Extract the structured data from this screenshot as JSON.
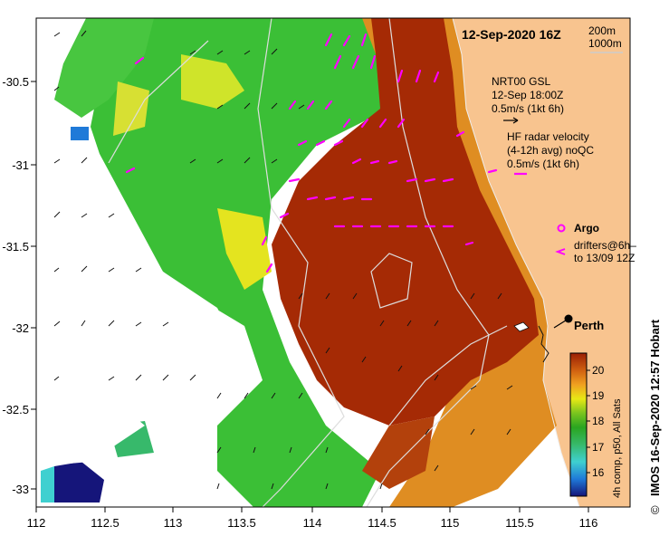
{
  "title": "12-Sep-2020 16Z",
  "isobaths": [
    "200m",
    "1000m"
  ],
  "gsl_legend": {
    "line1": "NRT00 GSL",
    "line2": "12-Sep 18:00Z",
    "line3": "0.5m/s (1kt 6h)"
  },
  "hf_legend": {
    "line1": "HF radar velocity",
    "line2": "(4-12h avg) noQC",
    "line3": "0.5m/s (1kt 6h)"
  },
  "argo_label": "Argo",
  "drifter_legend": {
    "line1": "drifters@6h–",
    "line2": "to 13/09 12Z"
  },
  "place_label": "Perth",
  "colorbar": {
    "ticks": [
      "20",
      "19",
      "18",
      "17",
      "16"
    ],
    "caption": "4h comp, p50, All Sats",
    "min": 15.5,
    "max": 20.5,
    "colors": [
      "#15157a",
      "#1f7ad8",
      "#3fd0d0",
      "#37b96b",
      "#2aa520",
      "#7ac41f",
      "#e8e815",
      "#f0a020",
      "#d06010",
      "#9a1f05"
    ]
  },
  "credit": "IMOS 16-Sep-2020 12:57 Hobart",
  "copyright": "©",
  "axes": {
    "x_labels": [
      "112",
      "112.5",
      "113",
      "113.5",
      "114",
      "114.5",
      "115",
      "115.5",
      "116"
    ],
    "y_labels": [
      "-30.5",
      "-31",
      "-31.5",
      "-32",
      "-32.5",
      "-33"
    ]
  },
  "colors": {
    "land": "#f8c48f",
    "warm": "#a52a05",
    "cool": "#3bbf36",
    "drifter": "#ff00ff"
  }
}
